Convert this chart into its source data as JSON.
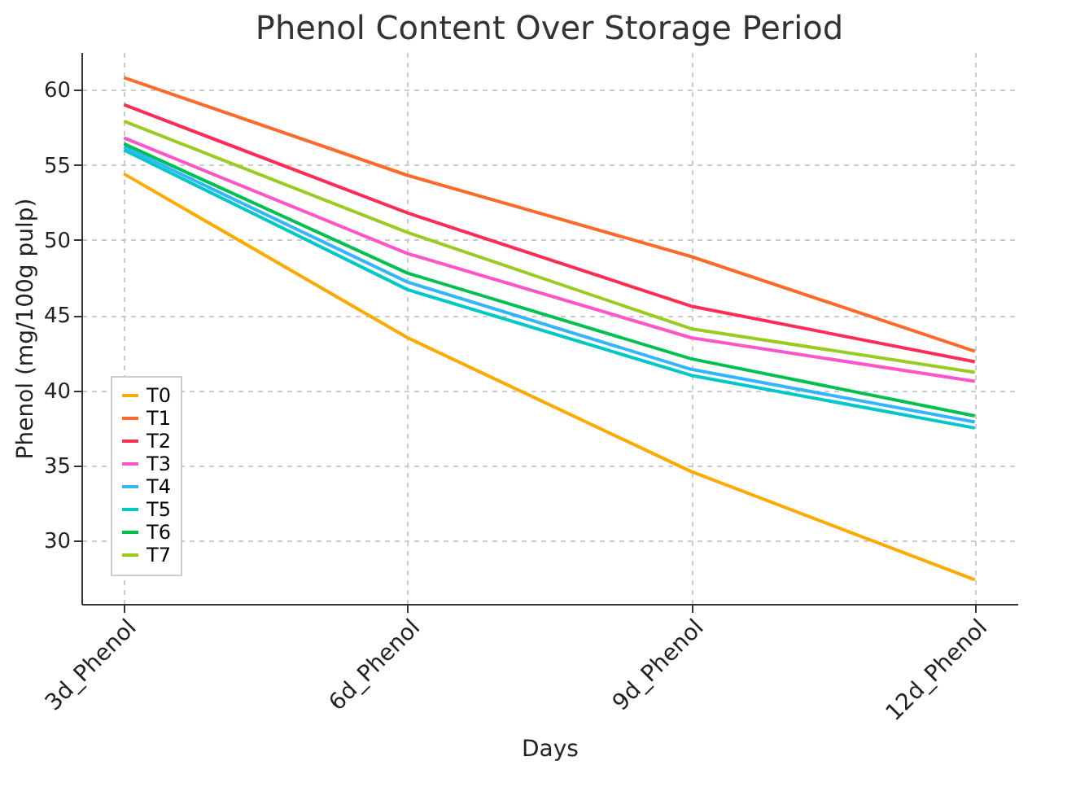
{
  "chart_data": {
    "type": "line",
    "title": "Phenol Content Over Storage Period",
    "xlabel": "Days",
    "ylabel": "Phenol (mg/100g pulp)",
    "categories": [
      "3d_Phenol",
      "6d_Phenol",
      "9d_Phenol",
      "12d_Phenol"
    ],
    "series": [
      {
        "name": "T0",
        "color": "#ffaa00",
        "values": [
          54.4,
          43.5,
          34.6,
          27.4
        ]
      },
      {
        "name": "T1",
        "color": "#ff6a2a",
        "values": [
          60.8,
          54.3,
          48.9,
          42.6
        ]
      },
      {
        "name": "T2",
        "color": "#ff2d55",
        "values": [
          59.0,
          51.8,
          45.6,
          41.9
        ]
      },
      {
        "name": "T3",
        "color": "#ff55c8",
        "values": [
          56.8,
          49.1,
          43.5,
          40.6
        ]
      },
      {
        "name": "T4",
        "color": "#33b5ff",
        "values": [
          56.2,
          47.2,
          41.4,
          37.9
        ]
      },
      {
        "name": "T5",
        "color": "#00c8c8",
        "values": [
          56.0,
          46.7,
          41.0,
          37.5
        ]
      },
      {
        "name": "T6",
        "color": "#00c050",
        "values": [
          56.4,
          47.8,
          42.1,
          38.3
        ]
      },
      {
        "name": "T7",
        "color": "#99cc22",
        "values": [
          57.9,
          50.5,
          44.1,
          41.2
        ]
      }
    ],
    "ylim": [
      25.8,
      62.5
    ],
    "yticks": [
      30,
      35,
      40,
      45,
      50,
      55,
      60
    ],
    "grid": true,
    "legend": "bottom left",
    "line_style": "solid"
  }
}
